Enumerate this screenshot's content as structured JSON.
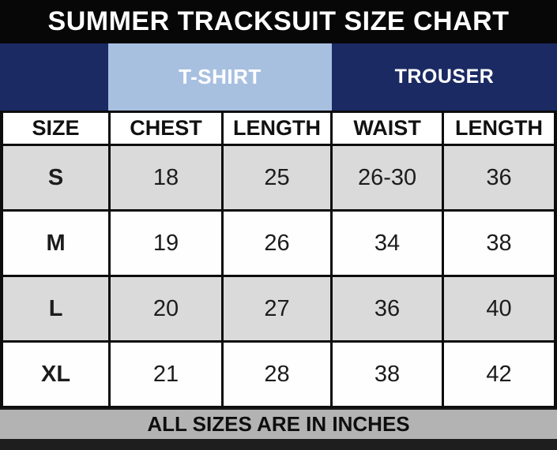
{
  "title_bar": {
    "title": "SUMMER TRACKSUIT SIZE CHART"
  },
  "group_header": {
    "tshirt_label": "T-SHIRT",
    "trouser_label": "TROUSER"
  },
  "table": {
    "columns": [
      "SIZE",
      "CHEST",
      "LENGTH",
      "WAIST",
      "LENGTH"
    ],
    "rows": [
      {
        "cells": [
          "S",
          "18",
          "25",
          "26-30",
          "36"
        ]
      },
      {
        "cells": [
          "M",
          "19",
          "26",
          "34",
          "38"
        ]
      },
      {
        "cells": [
          "L",
          "20",
          "27",
          "36",
          "40"
        ]
      },
      {
        "cells": [
          "XL",
          "21",
          "28",
          "38",
          "42"
        ]
      }
    ]
  },
  "footer": {
    "note": "ALL SIZES ARE IN INCHES"
  },
  "colors": {
    "title_bg": "#070707",
    "band_navy": "#1b2a63",
    "tshirt_cell_blue": "#a8c0e0",
    "row_gray": "#dadada",
    "row_white": "#fefefe",
    "footer_gray": "#b3b3b3",
    "bottom_strip": "#1e1e1e",
    "border_black": "#0d0d0d"
  },
  "chart_data": {
    "type": "table",
    "title": "SUMMER TRACKSUIT SIZE CHART",
    "column_groups": [
      {
        "label": "T-SHIRT",
        "columns": [
          "CHEST",
          "LENGTH"
        ]
      },
      {
        "label": "TROUSER",
        "columns": [
          "WAIST",
          "LENGTH"
        ]
      }
    ],
    "columns": [
      "SIZE",
      "CHEST",
      "LENGTH",
      "WAIST",
      "LENGTH"
    ],
    "rows": [
      [
        "S",
        "18",
        "25",
        "26-30",
        "36"
      ],
      [
        "M",
        "19",
        "26",
        "34",
        "38"
      ],
      [
        "L",
        "20",
        "27",
        "36",
        "40"
      ],
      [
        "XL",
        "21",
        "28",
        "38",
        "42"
      ]
    ],
    "footnote": "ALL SIZES ARE IN INCHES"
  }
}
